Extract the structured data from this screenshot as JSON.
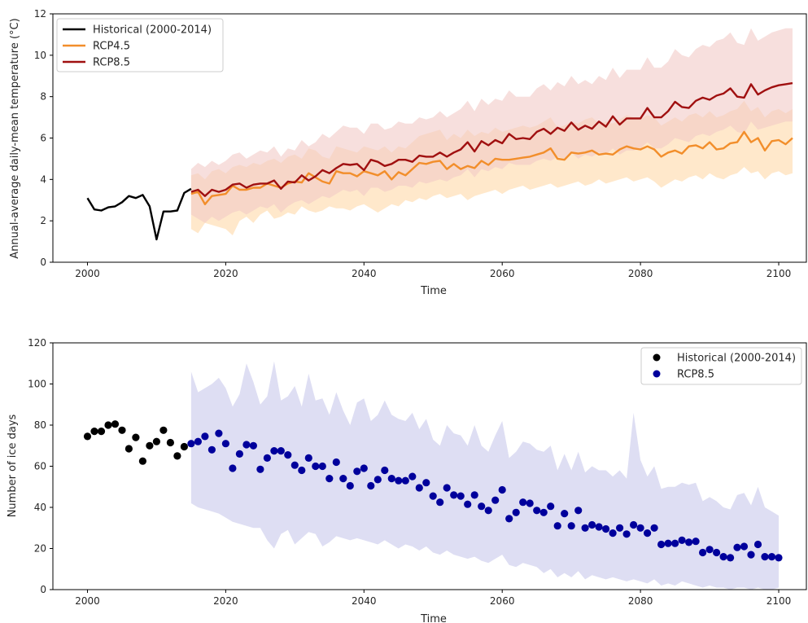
{
  "chart_data": [
    {
      "type": "line",
      "xlabel": "Time",
      "ylabel": "Annual-average daily-mean temperature (°C)",
      "xlim": [
        1995,
        2104
      ],
      "ylim": [
        0,
        12
      ],
      "xticks": [
        2000,
        2020,
        2040,
        2060,
        2080,
        2100
      ],
      "yticks": [
        0,
        2,
        4,
        6,
        8,
        10,
        12
      ],
      "grid": false,
      "legend_position": "top-left",
      "series": [
        {
          "name": "Historical (2000-2014)",
          "color": "#000000",
          "x": [
            2000,
            2001,
            2002,
            2003,
            2004,
            2005,
            2006,
            2007,
            2008,
            2009,
            2010,
            2011,
            2012,
            2013,
            2014,
            2015
          ],
          "values": [
            3.1,
            2.55,
            2.5,
            2.65,
            2.7,
            2.9,
            3.2,
            3.1,
            3.25,
            2.7,
            1.1,
            2.45,
            2.45,
            2.5,
            3.35,
            3.55
          ]
        },
        {
          "name": "RCP4.5",
          "color": "#f28e2b",
          "band_color": "#ffd9a8",
          "x_start": 2015,
          "values": [
            3.3,
            3.4,
            2.8,
            3.2,
            3.25,
            3.3,
            3.7,
            3.5,
            3.5,
            3.6,
            3.6,
            3.8,
            3.7,
            3.6,
            3.8,
            3.9,
            3.85,
            4.3,
            4.1,
            3.9,
            3.8,
            4.4,
            4.3,
            4.3,
            4.15,
            4.4,
            4.3,
            4.2,
            4.4,
            4.0,
            4.35,
            4.2,
            4.5,
            4.8,
            4.75,
            4.85,
            4.9,
            4.5,
            4.75,
            4.5,
            4.65,
            4.55,
            4.9,
            4.7,
            5.0,
            4.95,
            4.95,
            5.0,
            5.05,
            5.1,
            5.2,
            5.3,
            5.5,
            5.0,
            4.95,
            5.3,
            5.25,
            5.3,
            5.4,
            5.2,
            5.25,
            5.2,
            5.45,
            5.6,
            5.5,
            5.45,
            5.6,
            5.45,
            5.1,
            5.3,
            5.4,
            5.25,
            5.6,
            5.65,
            5.5,
            5.8,
            5.45,
            5.5,
            5.75,
            5.8,
            6.3,
            5.8,
            6.0,
            5.4,
            5.85,
            5.9,
            5.7,
            6.0
          ],
          "lower": [
            1.6,
            1.4,
            1.9,
            1.8,
            1.7,
            1.6,
            1.3,
            2.0,
            2.2,
            1.9,
            2.3,
            2.5,
            2.1,
            2.2,
            2.4,
            2.3,
            2.7,
            2.5,
            2.4,
            2.5,
            2.7,
            2.6,
            2.6,
            2.5,
            2.7,
            2.8,
            2.6,
            2.4,
            2.6,
            2.8,
            2.7,
            3.0,
            2.9,
            3.1,
            3.0,
            3.2,
            3.3,
            3.1,
            3.2,
            3.3,
            3.0,
            3.2,
            3.3,
            3.4,
            3.5,
            3.3,
            3.5,
            3.6,
            3.7,
            3.5,
            3.6,
            3.7,
            3.8,
            3.6,
            3.7,
            3.8,
            3.9,
            3.7,
            3.8,
            4.0,
            3.8,
            3.9,
            4.0,
            4.1,
            3.9,
            4.0,
            4.1,
            3.9,
            3.6,
            3.8,
            4.0,
            3.9,
            4.1,
            4.2,
            4.0,
            4.3,
            4.1,
            4.0,
            4.2,
            4.3,
            4.6,
            4.3,
            4.4,
            4.0,
            4.3,
            4.4,
            4.2,
            4.3
          ],
          "upper": [
            4.2,
            4.3,
            4.0,
            4.4,
            4.5,
            4.3,
            4.6,
            4.7,
            4.6,
            4.8,
            4.7,
            4.9,
            5.0,
            4.8,
            5.1,
            5.2,
            5.0,
            5.5,
            5.4,
            5.1,
            5.0,
            5.6,
            5.5,
            5.4,
            5.3,
            5.6,
            5.5,
            5.4,
            5.6,
            5.3,
            5.6,
            5.5,
            5.8,
            6.1,
            6.2,
            6.3,
            6.4,
            5.9,
            6.2,
            6.0,
            6.4,
            6.1,
            6.3,
            6.2,
            6.5,
            6.3,
            6.4,
            6.5,
            6.6,
            6.5,
            6.6,
            6.8,
            7.0,
            6.5,
            6.6,
            6.8,
            6.7,
            6.9,
            7.0,
            6.7,
            6.8,
            6.7,
            6.9,
            7.1,
            7.0,
            6.9,
            7.1,
            7.0,
            6.6,
            6.8,
            7.0,
            6.8,
            7.1,
            7.2,
            7.0,
            7.3,
            7.0,
            7.1,
            7.3,
            7.4,
            7.8,
            7.3,
            7.5,
            7.0,
            7.3,
            7.4,
            7.2,
            7.4
          ]
        },
        {
          "name": "RCP8.5",
          "color": "#a01010",
          "band_color": "#f2c9c6",
          "x_start": 2015,
          "values": [
            3.4,
            3.5,
            3.2,
            3.5,
            3.4,
            3.5,
            3.75,
            3.8,
            3.6,
            3.75,
            3.8,
            3.8,
            3.95,
            3.55,
            3.9,
            3.85,
            4.2,
            3.95,
            4.15,
            4.45,
            4.3,
            4.55,
            4.75,
            4.7,
            4.75,
            4.45,
            4.95,
            4.85,
            4.65,
            4.75,
            4.95,
            4.95,
            4.85,
            5.15,
            5.1,
            5.1,
            5.3,
            5.1,
            5.3,
            5.45,
            5.8,
            5.35,
            5.85,
            5.65,
            5.9,
            5.75,
            6.2,
            5.95,
            6.0,
            5.95,
            6.3,
            6.45,
            6.2,
            6.5,
            6.35,
            6.75,
            6.4,
            6.6,
            6.45,
            6.8,
            6.55,
            7.05,
            6.65,
            6.95,
            6.95,
            6.95,
            7.45,
            7.0,
            7.0,
            7.3,
            7.75,
            7.5,
            7.45,
            7.8,
            7.95,
            7.85,
            8.05,
            8.15,
            8.4,
            8.0,
            7.95,
            8.6,
            8.1,
            8.3,
            8.45,
            8.55,
            8.6,
            8.65
          ],
          "lower": [
            2.3,
            2.1,
            1.9,
            2.2,
            2.0,
            2.2,
            2.4,
            2.5,
            2.3,
            2.5,
            2.7,
            2.6,
            2.8,
            2.4,
            2.7,
            2.9,
            3.0,
            2.8,
            3.0,
            3.2,
            3.1,
            3.3,
            3.5,
            3.4,
            3.5,
            3.2,
            3.6,
            3.6,
            3.4,
            3.5,
            3.7,
            3.7,
            3.6,
            3.9,
            3.8,
            3.9,
            4.0,
            3.9,
            4.1,
            4.2,
            4.5,
            4.1,
            4.5,
            4.4,
            4.6,
            4.5,
            4.8,
            4.7,
            4.7,
            4.7,
            4.9,
            5.0,
            4.9,
            5.1,
            5.0,
            5.3,
            5.0,
            5.2,
            5.1,
            5.3,
            5.2,
            5.5,
            5.2,
            5.4,
            5.4,
            5.5,
            5.8,
            5.5,
            5.5,
            5.7,
            6.0,
            5.9,
            5.8,
            6.1,
            6.2,
            6.1,
            6.3,
            6.4,
            6.6,
            6.3,
            6.2,
            6.8,
            6.4,
            6.5,
            6.6,
            6.7,
            6.8,
            6.8
          ],
          "upper": [
            4.5,
            4.8,
            4.6,
            4.9,
            4.7,
            4.9,
            5.2,
            5.3,
            5.0,
            5.2,
            5.4,
            5.3,
            5.6,
            5.1,
            5.5,
            5.4,
            5.9,
            5.6,
            5.8,
            6.2,
            6.0,
            6.3,
            6.6,
            6.5,
            6.5,
            6.2,
            6.7,
            6.7,
            6.4,
            6.5,
            6.8,
            6.7,
            6.7,
            7.0,
            6.9,
            7.0,
            7.3,
            7.0,
            7.2,
            7.4,
            7.8,
            7.3,
            7.9,
            7.6,
            7.9,
            7.8,
            8.3,
            8.0,
            8.0,
            8.0,
            8.4,
            8.6,
            8.3,
            8.7,
            8.5,
            9.0,
            8.6,
            8.8,
            8.6,
            9.0,
            8.8,
            9.4,
            8.9,
            9.3,
            9.3,
            9.3,
            9.9,
            9.4,
            9.4,
            9.7,
            10.3,
            10.0,
            9.9,
            10.3,
            10.5,
            10.4,
            10.7,
            10.8,
            11.1,
            10.6,
            10.5,
            11.3,
            10.7,
            10.9,
            11.1,
            11.2,
            11.3,
            11.3
          ]
        }
      ]
    },
    {
      "type": "scatter",
      "xlabel": "Time",
      "ylabel": "Number of ice days",
      "xlim": [
        1995,
        2104
      ],
      "ylim": [
        0,
        120
      ],
      "xticks": [
        2000,
        2020,
        2040,
        2060,
        2080,
        2100
      ],
      "yticks": [
        0,
        20,
        40,
        60,
        80,
        100,
        120
      ],
      "grid": false,
      "legend_position": "top-right",
      "series": [
        {
          "name": "Historical (2000-2014)",
          "color": "#000000",
          "x_start": 2000,
          "values": [
            74.5,
            77,
            77,
            80,
            80.5,
            77.5,
            68.5,
            74,
            62.5,
            70,
            72,
            77.5,
            71.5,
            65,
            69.5
          ]
        },
        {
          "name": "RCP8.5",
          "color": "#00009c",
          "band_color": "#dcdcf2",
          "x_start": 2015,
          "values": [
            71,
            72,
            74.5,
            68,
            76,
            71,
            59,
            66,
            70.5,
            70,
            58.5,
            64,
            67.5,
            67.5,
            65.5,
            60.5,
            58,
            64,
            60,
            60,
            54,
            62,
            54,
            50.5,
            57.5,
            59,
            50.5,
            53.5,
            58,
            54,
            53,
            53,
            55,
            49.5,
            52,
            45.5,
            42.5,
            49.5,
            46,
            45.5,
            41.5,
            46,
            40.5,
            38.5,
            43.5,
            48.5,
            34.5,
            37.5,
            42.5,
            42,
            38.5,
            37.5,
            40.5,
            31,
            37,
            31,
            38.5,
            30,
            31.5,
            30.5,
            29.5,
            27.5,
            30,
            27,
            31.5,
            30,
            27.5,
            30,
            22,
            22.5,
            22.5,
            24,
            23,
            23.5,
            18,
            19.5,
            18,
            16,
            15.5,
            20.5,
            21,
            17,
            22,
            16,
            16,
            15.5
          ],
          "lower": [
            42,
            40,
            39,
            38,
            37,
            35,
            33,
            32,
            31,
            30,
            30,
            24,
            20,
            27,
            29,
            22,
            25,
            28,
            27,
            21,
            23,
            26,
            25,
            24,
            25,
            24,
            23,
            22,
            24,
            22,
            20,
            22,
            21,
            19,
            21,
            18,
            17,
            19,
            17,
            16,
            15,
            16,
            14,
            13,
            15,
            17,
            12,
            11,
            13,
            12,
            11,
            8,
            10,
            6,
            8,
            6,
            9,
            5,
            7,
            6,
            5,
            6,
            5,
            4,
            5,
            4,
            3,
            5,
            2,
            3,
            2,
            4,
            3,
            2,
            1,
            2,
            1,
            1,
            0,
            1,
            1,
            0,
            1,
            0,
            0,
            1
          ],
          "upper": [
            106,
            96,
            98,
            100,
            103,
            98,
            89,
            95,
            110,
            101,
            90,
            94,
            111,
            92,
            94,
            99,
            89,
            105,
            92,
            93,
            85,
            96,
            87,
            80,
            91,
            93,
            82,
            85,
            92,
            85,
            83,
            82,
            86,
            78,
            83,
            73,
            70,
            80,
            76,
            75,
            70,
            80,
            70,
            67,
            75,
            82,
            64,
            67,
            72,
            71,
            68,
            67,
            70,
            58,
            66,
            58,
            67,
            57,
            60,
            58,
            58,
            55,
            58,
            54,
            86,
            63,
            55,
            60,
            49,
            50,
            50,
            52,
            51,
            52,
            43,
            45,
            43,
            40,
            39,
            46,
            47,
            41,
            50,
            40,
            38,
            36
          ]
        }
      ]
    }
  ]
}
